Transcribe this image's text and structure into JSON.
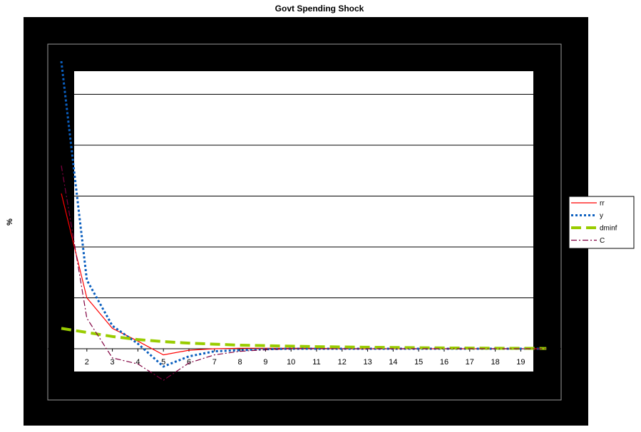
{
  "chart_data": {
    "type": "line",
    "title": "Govt Spending Shock",
    "xlabel": "",
    "ylabel": "%",
    "x": [
      1,
      2,
      3,
      4,
      5,
      6,
      7,
      8,
      9,
      10,
      11,
      12,
      13,
      14,
      15,
      16,
      17,
      18,
      19,
      20
    ],
    "xtick_labels": [
      "2",
      "3",
      "4",
      "5",
      "6",
      "7",
      "8",
      "9",
      "10",
      "11",
      "12",
      "13",
      "14",
      "15",
      "16",
      "17",
      "18",
      "19"
    ],
    "ylim": [
      -0.5,
      5.5
    ],
    "grid": true,
    "legend_position": "right",
    "series": [
      {
        "name": "rr",
        "color": "#ff0000",
        "style": "solid",
        "values": [
          3.05,
          1.0,
          0.4,
          0.15,
          -0.12,
          -0.03,
          0.0,
          0.01,
          0.01,
          0.01,
          0.01,
          0.0,
          0.0,
          0.0,
          0.0,
          0.0,
          0.0,
          0.0,
          0.0,
          0.0
        ]
      },
      {
        "name": "y",
        "color": "#0b5fbf",
        "style": "dotted",
        "values": [
          5.65,
          1.35,
          0.45,
          0.1,
          -0.35,
          -0.15,
          -0.05,
          -0.03,
          -0.01,
          0.0,
          0.0,
          0.0,
          0.0,
          0.0,
          0.0,
          0.0,
          0.0,
          0.0,
          0.0,
          0.0
        ]
      },
      {
        "name": "dminf",
        "color": "#99cc00",
        "style": "dashed",
        "values": [
          0.4,
          0.32,
          0.24,
          0.18,
          0.14,
          0.11,
          0.09,
          0.07,
          0.06,
          0.05,
          0.04,
          0.035,
          0.03,
          0.025,
          0.02,
          0.015,
          0.012,
          0.01,
          0.008,
          0.005
        ]
      },
      {
        "name": "C",
        "color": "#800040",
        "style": "dashdot",
        "values": [
          3.6,
          0.6,
          -0.18,
          -0.3,
          -0.62,
          -0.28,
          -0.12,
          -0.05,
          -0.02,
          0.0,
          0.0,
          0.0,
          0.0,
          0.0,
          0.0,
          0.0,
          0.0,
          0.0,
          0.0,
          0.0
        ]
      }
    ]
  }
}
